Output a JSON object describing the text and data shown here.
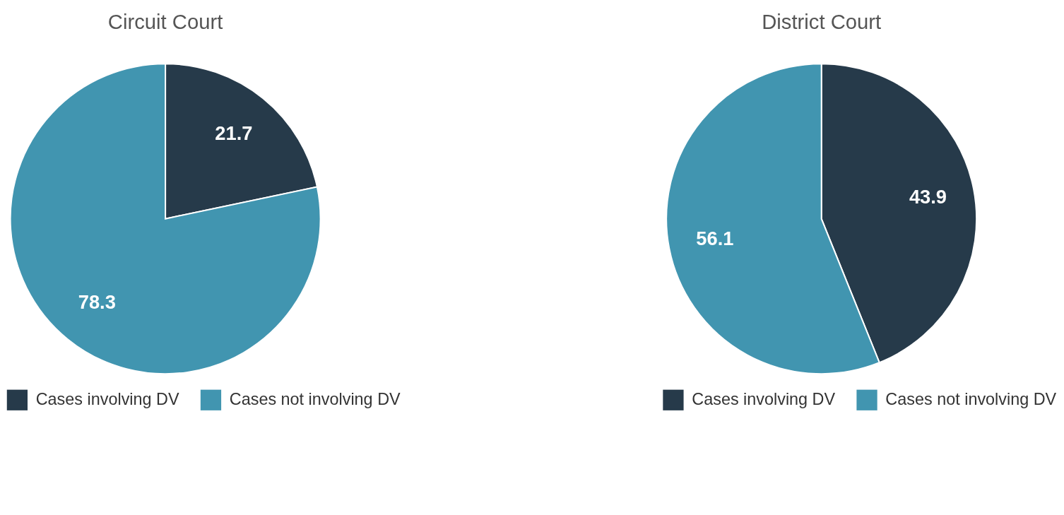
{
  "chart_data": [
    {
      "type": "pie",
      "title": "Circuit Court",
      "categories": [
        "Cases involving DV",
        "Cases not involving DV"
      ],
      "values": [
        21.7,
        78.3
      ],
      "colors": [
        "#263a4a",
        "#4195b0"
      ],
      "data_labels": true,
      "legend": "bottom"
    },
    {
      "type": "pie",
      "title": "District Court",
      "categories": [
        "Cases involving DV",
        "Cases not involving DV"
      ],
      "values": [
        43.9,
        56.1
      ],
      "colors": [
        "#263a4a",
        "#4195b0"
      ],
      "data_labels": true,
      "legend": "bottom"
    }
  ]
}
